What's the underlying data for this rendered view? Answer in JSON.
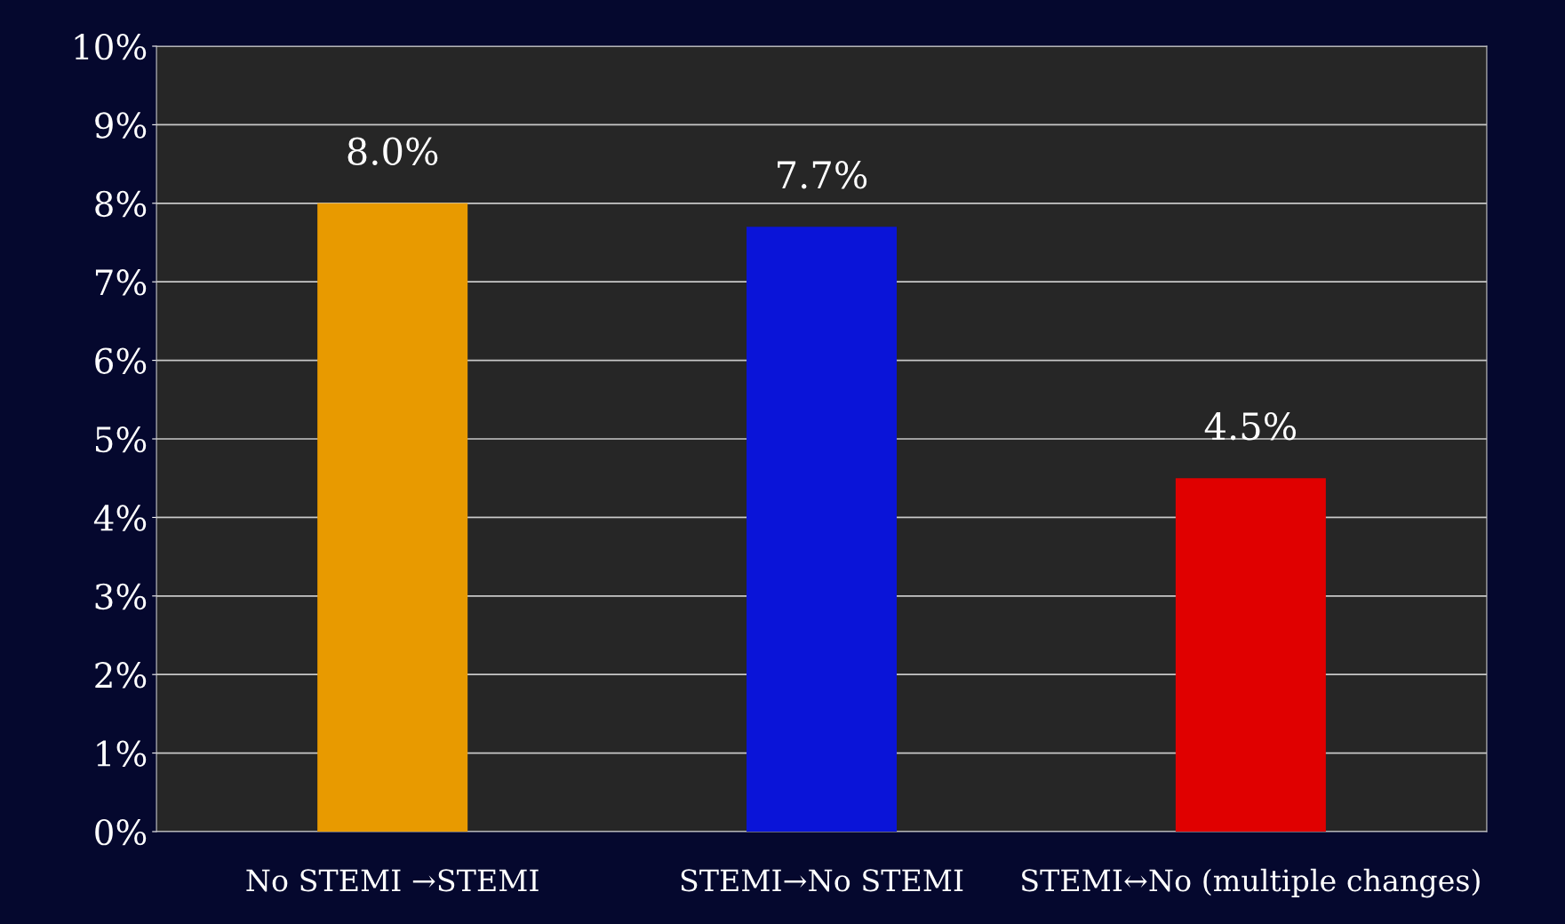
{
  "chart_data": {
    "type": "bar",
    "categories": [
      "No STEMI →STEMI",
      "STEMI→No STEMI",
      "STEMI↔No (multiple changes)"
    ],
    "values": [
      8.0,
      7.7,
      4.5
    ],
    "colors": [
      "#e89a00",
      "#0a14d8",
      "#e00000"
    ],
    "value_labels": [
      "8.0%",
      "7.7%",
      "4.5%"
    ],
    "ylim": [
      0,
      10
    ],
    "yticks": [
      {
        "value": 0,
        "label": "0%"
      },
      {
        "value": 1,
        "label": "1%"
      },
      {
        "value": 2,
        "label": "2%"
      },
      {
        "value": 3,
        "label": "3%"
      },
      {
        "value": 4,
        "label": "4%"
      },
      {
        "value": 5,
        "label": "5%"
      },
      {
        "value": 6,
        "label": "6%"
      },
      {
        "value": 7,
        "label": "7%"
      },
      {
        "value": 8,
        "label": "8%"
      },
      {
        "value": 9,
        "label": "9%"
      },
      {
        "value": 10,
        "label": "10%"
      }
    ],
    "grid": "y"
  }
}
